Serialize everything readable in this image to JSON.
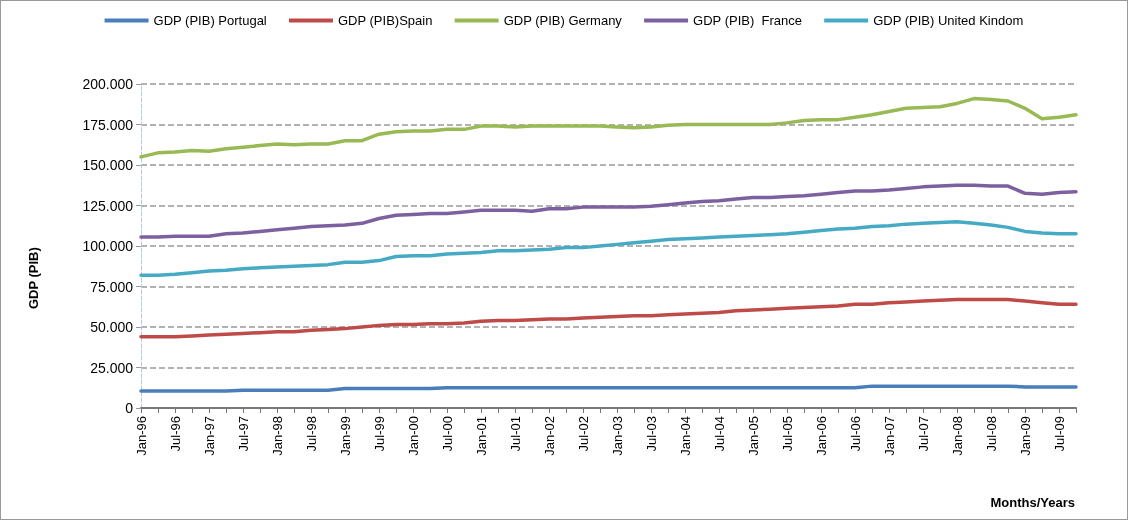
{
  "chart_data": {
    "type": "line",
    "xlabel": "Months/Years",
    "ylabel": "GDP (PIB)",
    "categories": [
      "Jan-96",
      null,
      "Jul-96",
      null,
      "Jan-97",
      null,
      "Jul-97",
      null,
      "Jan-98",
      null,
      "Jul-98",
      null,
      "Jan-99",
      null,
      "Jul-99",
      null,
      "Jan-00",
      null,
      "Jul-00",
      null,
      "Jan-01",
      null,
      "Jul-01",
      null,
      "Jan-02",
      null,
      "Jul-02",
      null,
      "Jan-03",
      null,
      "Jul-03",
      null,
      "Jan-04",
      null,
      "Jul-04",
      null,
      "Jan-05",
      null,
      "Jul-05",
      null,
      "Jan-06",
      null,
      "Jul-06",
      null,
      "Jan-07",
      null,
      "Jul-07",
      null,
      "Jan-08",
      null,
      "Jul-08",
      null,
      "Jan-09",
      null,
      "Jul-09",
      null
    ],
    "series": [
      {
        "name": "GDP (PIB) Portugal",
        "color": "#4a7ebb",
        "values": [
          10500,
          10500,
          10500,
          10500,
          10500,
          10500,
          11000,
          11000,
          11000,
          11000,
          11000,
          11000,
          12000,
          12000,
          12000,
          12000,
          12000,
          12000,
          12500,
          12500,
          12500,
          12500,
          12500,
          12500,
          12500,
          12500,
          12500,
          12500,
          12500,
          12500,
          12500,
          12500,
          12500,
          12500,
          12500,
          12500,
          12500,
          12500,
          12500,
          12500,
          12500,
          12500,
          12500,
          13500,
          13500,
          13500,
          13500,
          13500,
          13500,
          13500,
          13500,
          13500,
          13000,
          13000,
          13000,
          13000
        ]
      },
      {
        "name": "GDP (PIB)Spain",
        "color": "#be4b48",
        "values": [
          44000,
          44000,
          44000,
          44500,
          45000,
          45500,
          46000,
          46500,
          47000,
          47000,
          48000,
          48500,
          49000,
          50000,
          51000,
          51500,
          51500,
          52000,
          52000,
          52500,
          53500,
          54000,
          54000,
          54500,
          55000,
          55000,
          55500,
          56000,
          56500,
          57000,
          57000,
          57500,
          58000,
          58500,
          59000,
          60000,
          60500,
          61000,
          61500,
          62000,
          62500,
          63000,
          64000,
          64000,
          65000,
          65500,
          66000,
          66500,
          67000,
          67000,
          67000,
          67000,
          66000,
          65000,
          64000,
          64000
        ]
      },
      {
        "name": "GDP (PIB) Germany",
        "color": "#98b954",
        "values": [
          155000,
          157500,
          158000,
          159000,
          158500,
          160000,
          161000,
          162000,
          163000,
          162500,
          163000,
          163000,
          165000,
          165000,
          169000,
          170500,
          171000,
          171000,
          172000,
          172000,
          174000,
          174000,
          173500,
          174000,
          174000,
          174000,
          174000,
          174000,
          173500,
          173000,
          173500,
          174500,
          175000,
          175000,
          175000,
          175000,
          175000,
          175000,
          176000,
          177500,
          178000,
          178000,
          179500,
          181000,
          183000,
          185000,
          185500,
          186000,
          188000,
          191000,
          190500,
          189500,
          185000,
          178500,
          179500,
          181000
        ]
      },
      {
        "name": "GDP (PIB)  France",
        "color": "#7d60a0",
        "values": [
          105500,
          105500,
          106000,
          106000,
          106000,
          107500,
          108000,
          109000,
          110000,
          111000,
          112000,
          112500,
          113000,
          114000,
          117000,
          119000,
          119500,
          120000,
          120000,
          121000,
          122000,
          122000,
          122000,
          121500,
          123000,
          123000,
          124000,
          124000,
          124000,
          124000,
          124500,
          125500,
          126500,
          127500,
          128000,
          129000,
          130000,
          130000,
          130500,
          131000,
          132000,
          133000,
          134000,
          134000,
          134500,
          135500,
          136500,
          137000,
          137500,
          137500,
          137000,
          137000,
          132500,
          132000,
          133000,
          133500
        ]
      },
      {
        "name": "GDP (PIB) United Kindom",
        "color": "#46aac5",
        "values": [
          82000,
          82000,
          82500,
          83500,
          84500,
          85000,
          86000,
          86500,
          87000,
          87500,
          88000,
          88500,
          90000,
          90000,
          91000,
          93500,
          94000,
          94000,
          95000,
          95500,
          96000,
          97000,
          97000,
          97500,
          98000,
          99000,
          99000,
          100000,
          101000,
          102000,
          103000,
          104000,
          104500,
          105000,
          105500,
          106000,
          106500,
          107000,
          107500,
          108500,
          109500,
          110500,
          111000,
          112000,
          112500,
          113500,
          114000,
          114500,
          115000,
          114000,
          113000,
          111500,
          109000,
          108000,
          107500,
          107500
        ]
      }
    ],
    "ylim": [
      0,
      200000
    ],
    "yticks": [
      0,
      {
        "value": 25000,
        "label": "25.000"
      },
      {
        "value": 50000,
        "label": "50.000"
      },
      {
        "value": 75000,
        "label": "75.000"
      },
      {
        "value": 100000,
        "label": "100.000"
      },
      {
        "value": 125000,
        "label": "125.000"
      },
      {
        "value": 150000,
        "label": "150.000"
      },
      {
        "value": 175000,
        "label": "175.000"
      },
      {
        "value": 200000,
        "label": "200.000"
      }
    ],
    "grid": "y",
    "legend": "top",
    "marker": "none",
    "line_style": "solid"
  }
}
